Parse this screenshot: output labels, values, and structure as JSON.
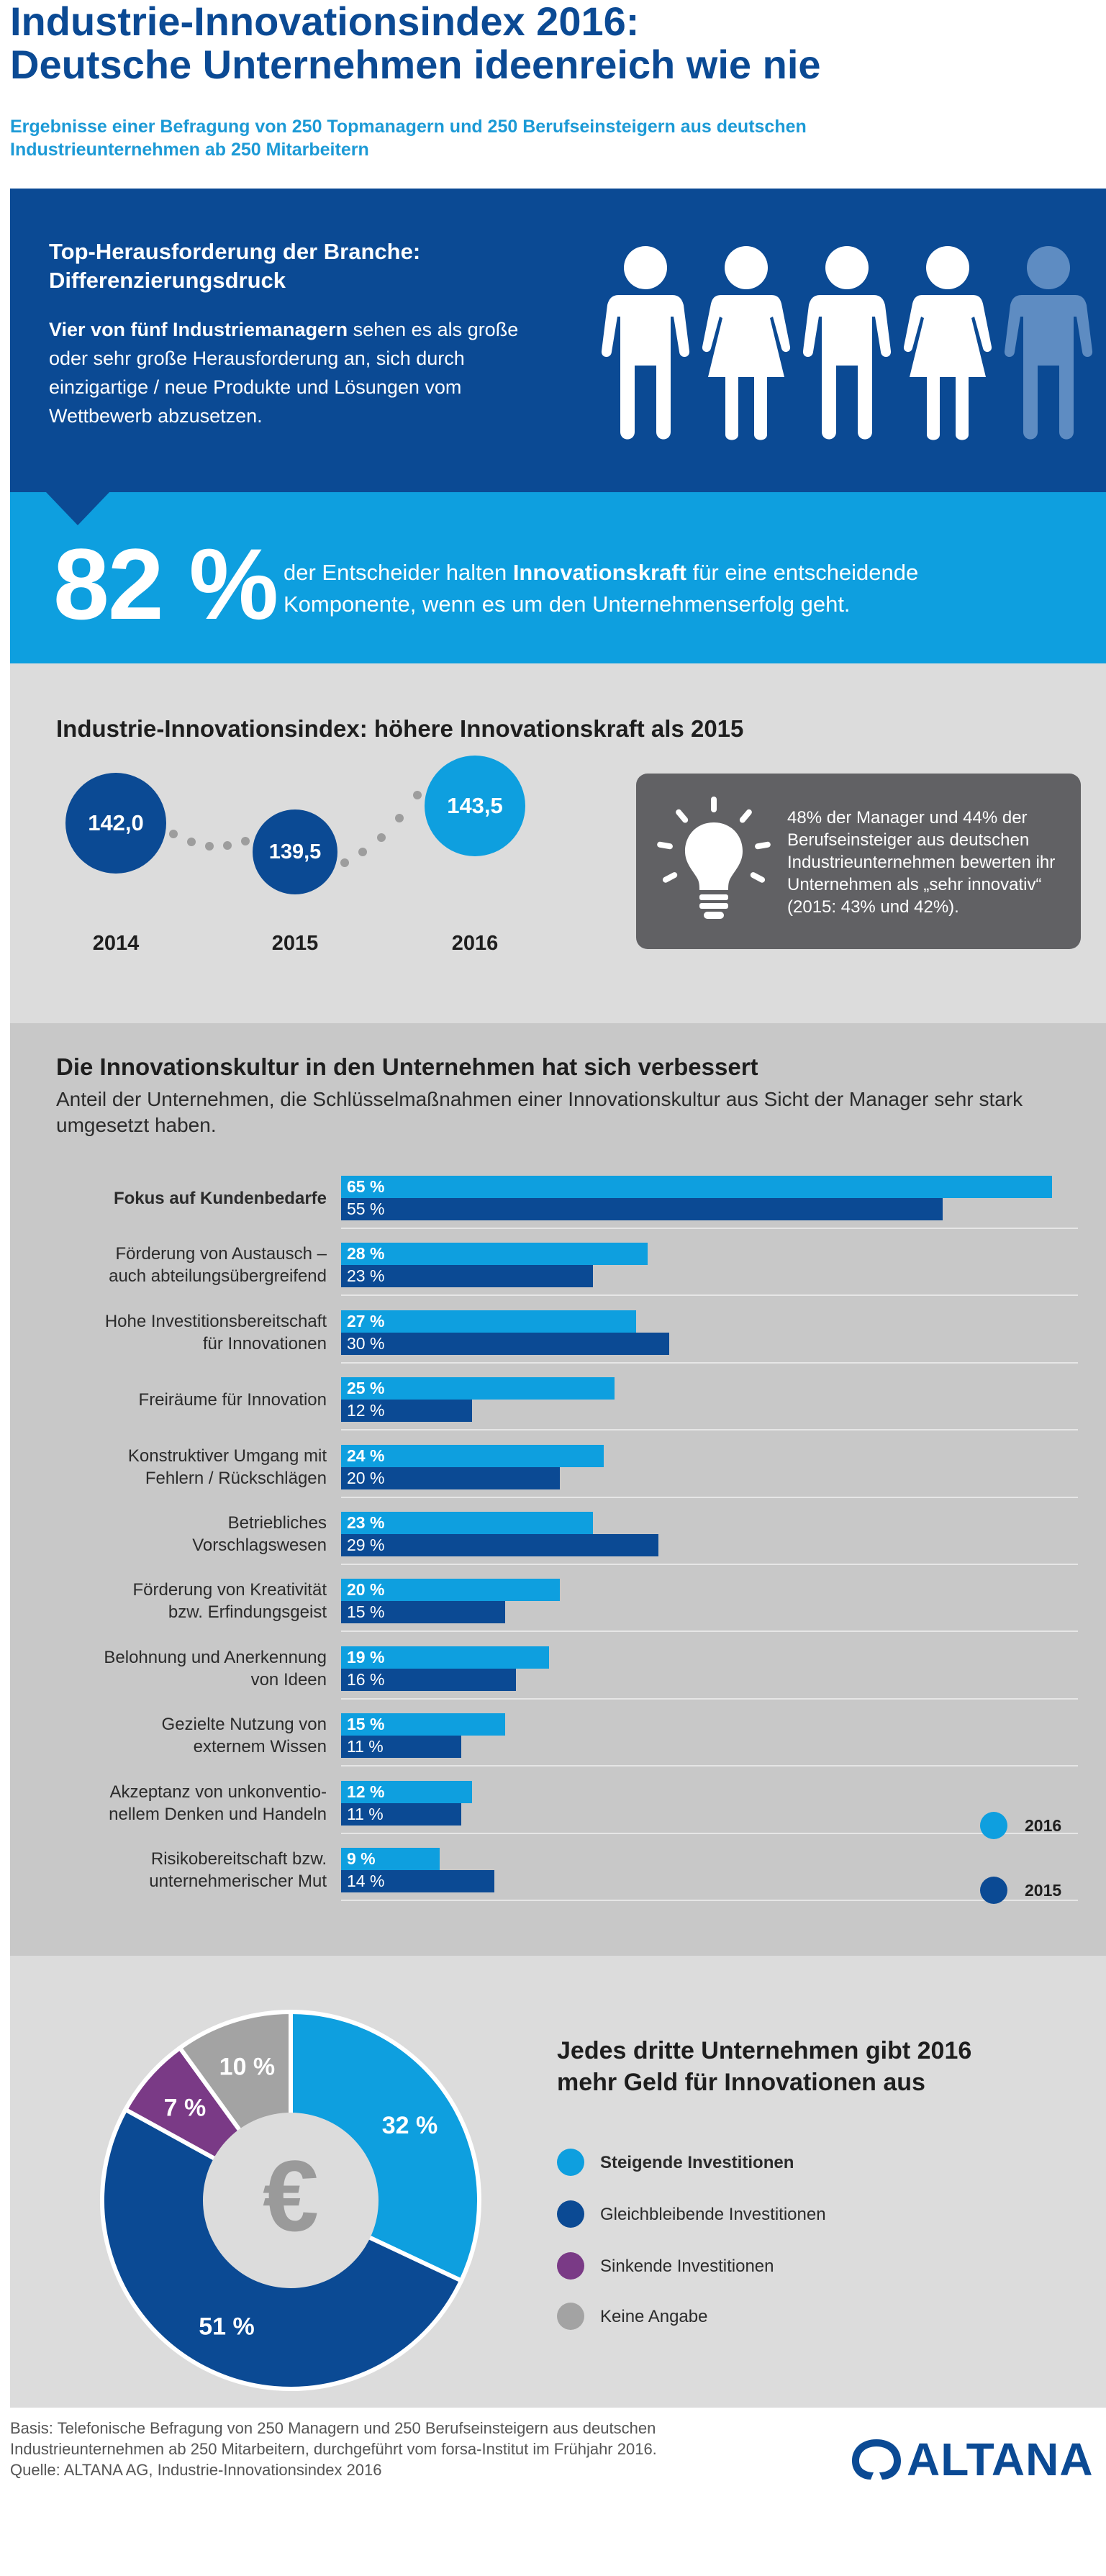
{
  "header": {
    "title_line1": "Industrie-Innovationsindex 2016:",
    "title_line2": "Deutsche Unternehmen ideenreich wie nie",
    "subtitle_line1": "Ergebnisse einer Befragung von 250 Topmanagern und 250 Berufseinsteigern aus deutschen",
    "subtitle_line2": "Industrieunternehmen ab 250 Mitarbeitern"
  },
  "challenge": {
    "heading_line1": "Top-Herausforderung der Branche:",
    "heading_line2": "Differenzierungsdruck",
    "text_bold": "Vier von fünf Industriemanagern",
    "text_rest": " sehen es als große oder sehr große Herausforderung an, sich durch einzigartige / neue Produkte und Lösungen vom Wettbewerb abzusetzen.",
    "person_icons": [
      "male",
      "female",
      "male",
      "female",
      "male-faded"
    ]
  },
  "innovation_power": {
    "percent": "82 %",
    "text_before": "der Entscheider halten ",
    "text_bold": "Innovationskraft",
    "text_after": " für eine entscheidende Komponente, wenn es um den Unternehmenserfolg geht."
  },
  "index": {
    "heading": "Industrie-Innovationsindex: höhere Innovationskraft als 2015",
    "info_text": "48% der Manager und 44% der Berufseinsteiger aus deutschen Industrieunternehmen bewerten ihr Unternehmen als „sehr innovativ“ (2015: 43% und 42%).",
    "icon": "lightbulb-icon"
  },
  "culture": {
    "heading": "Die Innovationskultur in den Unternehmen hat sich verbessert",
    "subheading": "Anteil der Unternehmen, die Schlüsselmaßnahmen einer Innovationskultur aus Sicht der Manager sehr stark umgesetzt haben."
  },
  "investment": {
    "heading_line1": "Jedes dritte Unternehmen gibt 2016",
    "heading_line2": "mehr Geld für Innovationen aus",
    "center_symbol": "€"
  },
  "footer": {
    "line1": "Basis: Telefonische Befragung von 250 Managern und 250 Berufseinsteigern aus deutschen",
    "line2": "Industrieunternehmen ab 250 Mitarbeitern, durchgeführt vom forsa-Institut im Frühjahr 2016.",
    "line3": "Quelle: ALTANA AG, Industrie-Innovationsindex 2016",
    "logo_text": "ALTANA"
  },
  "colors": {
    "dark_blue": "#0b4a94",
    "light_blue": "#0e9fdf",
    "purple": "#7a3a86",
    "gray": "#a3a3a3"
  },
  "chart_data": [
    {
      "type": "scatter",
      "title": "Industrie-Innovationsindex: höhere Innovationskraft als 2015",
      "x": [
        "2014",
        "2015",
        "2016"
      ],
      "values": [
        142.0,
        139.5,
        143.5
      ],
      "labels": [
        "142,0",
        "139,5",
        "143,5"
      ],
      "years": [
        "2014",
        "2015",
        "2016"
      ]
    },
    {
      "type": "bar",
      "orientation": "horizontal",
      "title": "Die Innovationskultur in den Unternehmen hat sich verbessert",
      "categories": [
        [
          "Fokus auf Kundenbedarfe"
        ],
        [
          "Förderung von Austausch –",
          "auch abteilungsübergreifend"
        ],
        [
          "Hohe Investitionsbereitschaft",
          "für Innovationen"
        ],
        [
          "Freiräume für Innovation"
        ],
        [
          "Konstruktiver Umgang mit",
          "Fehlern / Rückschlägen"
        ],
        [
          "Betriebliches",
          "Vorschlagswesen"
        ],
        [
          "Förderung von Kreativität",
          "bzw. Erfindungsgeist"
        ],
        [
          "Belohnung und Anerkennung",
          "von Ideen"
        ],
        [
          "Gezielte Nutzung von",
          "externem Wissen"
        ],
        [
          "Akzeptanz von unkonventio-",
          "nellem Denken und Handeln"
        ],
        [
          "Risikobereitschaft bzw.",
          "unternehmerischer Mut"
        ]
      ],
      "series": [
        {
          "name": "2016",
          "values": [
            65,
            28,
            27,
            25,
            24,
            23,
            20,
            19,
            15,
            12,
            9
          ],
          "labels": [
            "65 %",
            "28 %",
            "27 %",
            "25 %",
            "24 %",
            "23 %",
            "20 %",
            "19 %",
            "15 %",
            "12 %",
            "9 %"
          ]
        },
        {
          "name": "2015",
          "values": [
            55,
            23,
            30,
            12,
            20,
            29,
            15,
            16,
            11,
            11,
            14
          ],
          "labels": [
            "55 %",
            "23 %",
            "30 %",
            "12 %",
            "20 %",
            "29 %",
            "15 %",
            "16 %",
            "11 %",
            "11 %",
            "14 %"
          ]
        }
      ],
      "unit": "%",
      "legend": [
        "2016",
        "2015"
      ]
    },
    {
      "type": "pie",
      "title": "Jedes dritte Unternehmen gibt 2016 mehr Geld für Innovationen aus",
      "categories": [
        "Steigende Investitionen",
        "Gleichbleibende Investitionen",
        "Sinkende Investitionen",
        "Keine Angabe"
      ],
      "values": [
        32,
        51,
        7,
        10
      ],
      "labels": [
        "32 %",
        "51 %",
        "7 %",
        "10 %"
      ]
    }
  ]
}
